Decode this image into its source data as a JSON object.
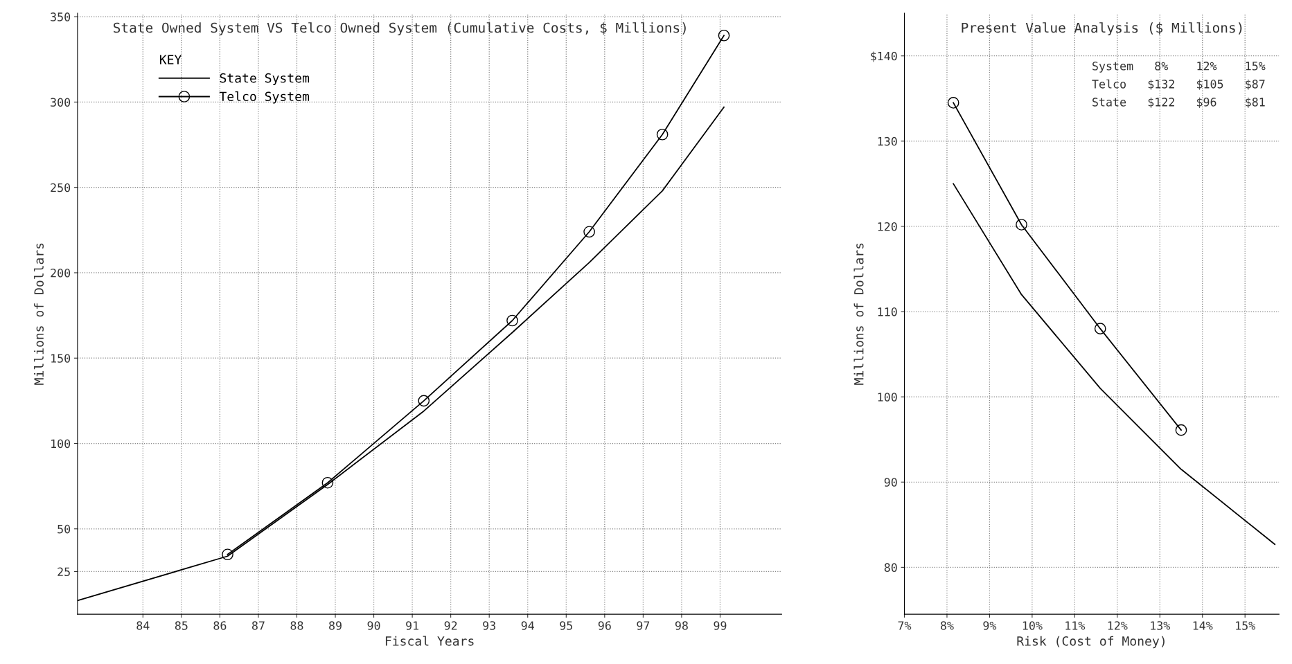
{
  "chart_data": [
    {
      "type": "line",
      "title": "State Owned System VS Telco Owned System (Cumulative Costs, $ Millions)",
      "xlabel": "Fiscal Years",
      "ylabel": "Millions of Dollars",
      "legend_title": "KEY",
      "legend": "top left",
      "grid": true,
      "xlim": [
        82.3,
        100.6
      ],
      "xticks": [
        84,
        85,
        86,
        87,
        88,
        89,
        90,
        91,
        92,
        93,
        94,
        95,
        96,
        97,
        98,
        99
      ],
      "ylim": [
        0,
        352
      ],
      "yticks": [
        25,
        50,
        100,
        150,
        200,
        250,
        300,
        350
      ],
      "series": [
        {
          "name": "State System",
          "color": "#000000",
          "marker": "none",
          "x": [
            82.3,
            86.2,
            88.8,
            91.3,
            93.6,
            95.6,
            97.5,
            99.1
          ],
          "values": [
            8,
            34,
            76,
            119,
            165,
            206,
            248,
            297
          ]
        },
        {
          "name": "Telco System",
          "color": "#000000",
          "marker": "circle",
          "x": [
            86.2,
            88.8,
            91.3,
            93.6,
            95.6,
            97.5,
            99.1
          ],
          "values": [
            35,
            77,
            125,
            172,
            224,
            281,
            339
          ]
        }
      ]
    },
    {
      "type": "line",
      "title": "Present Value Analysis ($ Millions)",
      "xlabel": "Risk (Cost of Money)",
      "ylabel": "Millions of Dollars",
      "grid": true,
      "xlim": [
        7,
        15.8
      ],
      "xticks": [
        {
          "value": 7,
          "label": "7%"
        },
        {
          "value": 8,
          "label": "8%"
        },
        {
          "value": 9,
          "label": "9%"
        },
        {
          "value": 10,
          "label": "10%"
        },
        {
          "value": 11,
          "label": "11%"
        },
        {
          "value": 12,
          "label": "12%"
        },
        {
          "value": 13,
          "label": "13%"
        },
        {
          "value": 14,
          "label": "14%"
        },
        {
          "value": 15,
          "label": "15%"
        }
      ],
      "ylim": [
        74.5,
        145
      ],
      "yticks": [
        80,
        90,
        100,
        110,
        120,
        130,
        {
          "value": 140,
          "label": "$140"
        }
      ],
      "annotations": [
        "System   8%    12%    15%",
        "Telco   $132   $105   $87",
        "State   $122   $96    $81"
      ],
      "series": [
        {
          "color": "#000000",
          "marker": "circle",
          "x": [
            8.15,
            9.75,
            11.6,
            13.5
          ],
          "values": [
            134.5,
            120.2,
            108,
            96.1
          ]
        },
        {
          "color": "#000000",
          "marker": "none",
          "x": [
            8.15,
            9.75,
            11.6,
            13.5,
            15.7
          ],
          "values": [
            125,
            112,
            101,
            91.5,
            82.7
          ]
        }
      ]
    }
  ]
}
